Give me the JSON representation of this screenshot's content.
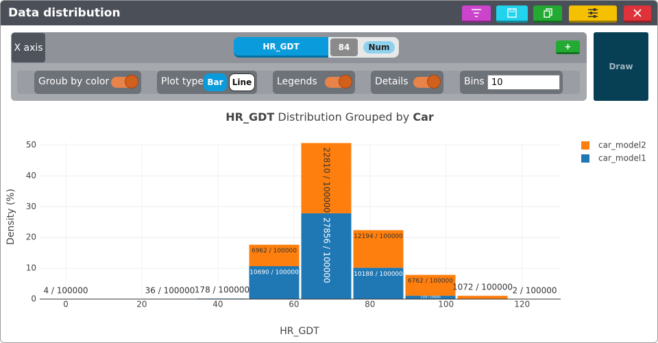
{
  "window": {
    "title": "Data distribution"
  },
  "controls": {
    "x_axis": "X axis",
    "x_field": "HR_GDT",
    "count": "84",
    "field_type": "Num",
    "add": "+",
    "draw": "Draw",
    "group_by_color": "Groub by color",
    "plot_type": "Plot type",
    "bar": "Bar",
    "line": "Line",
    "legends": "Legends",
    "details": "Details",
    "bins": "Bins",
    "bins_value": "10"
  },
  "chart_data": {
    "type": "histogram",
    "title_parts": [
      "HR_GDT",
      "Distribution Grouped by",
      "Car"
    ],
    "x_label": "HR_GDT",
    "y_label": "Density (%)",
    "bins": [
      -6.85,
      6.85,
      20.55,
      34.25,
      47.95,
      61.65,
      75.35,
      89.05,
      102.75,
      116.45,
      130.15
    ],
    "series": [
      {
        "name": "car_model1",
        "color": "#1f77b4",
        "values": [
          0,
          0,
          0.036,
          0.178,
          10.69,
          27.856,
          10.188,
          1.1,
          0,
          0
        ],
        "value_labels": [
          null,
          null,
          "36 / 100000",
          "178 / 100000",
          "10690 / 100000",
          "27856 / 100000",
          "10188 / 100000",
          "1100 / 100000",
          null,
          null
        ]
      },
      {
        "name": "car_model2",
        "color": "#ff7f0e",
        "values": [
          0.004,
          0,
          0,
          0,
          6.962,
          22.81,
          12.194,
          6.762,
          1.072,
          0.002
        ],
        "value_labels": [
          "4 / 100000",
          null,
          null,
          null,
          "6962 / 100000",
          "22810 / 100000",
          "12194 / 100000",
          "6762 / 100000",
          "1072 / 100000",
          "2 / 100000"
        ]
      }
    ],
    "xlim": [
      -6.85,
      130.15
    ],
    "xticks": [
      0,
      20,
      40,
      60,
      80,
      100,
      120
    ],
    "ylim": [
      0,
      51
    ],
    "yticks": [
      0,
      10,
      20,
      30,
      40,
      50
    ],
    "grid": true,
    "legend": "top-right"
  }
}
